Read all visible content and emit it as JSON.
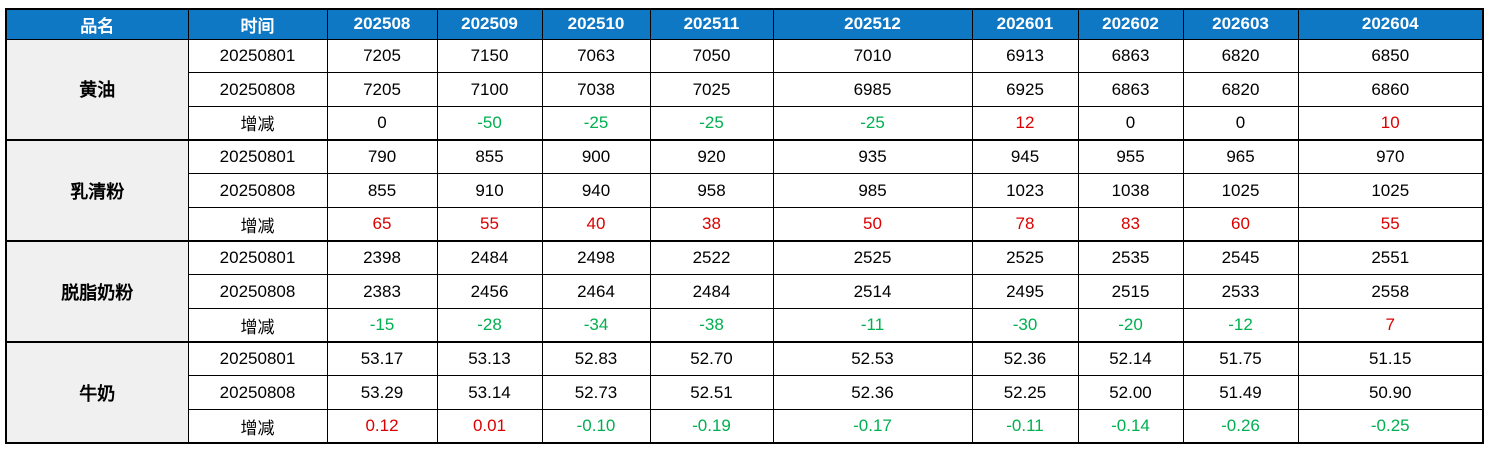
{
  "colors": {
    "header_bg": "#0F78C5",
    "header_text": "#FFFFFF",
    "increase_text": "#DC0000",
    "decrease_text": "#00B050",
    "neutral_text": "#000000",
    "product_column_bg": "#F0F0F0",
    "border": "#000000"
  },
  "chart_data": {
    "type": "table",
    "product_header": "品名",
    "time_header": "时间",
    "month_columns": [
      "202508",
      "202509",
      "202510",
      "202511",
      "202512",
      "202601",
      "202602",
      "202603",
      "202604"
    ],
    "row_labels": [
      "20250801",
      "20250808",
      "增减"
    ],
    "products": [
      {
        "name": "黄油",
        "rows": [
          {
            "label": "20250801",
            "change_row": false,
            "values": [
              "7205",
              "7150",
              "7063",
              "7050",
              "7010",
              "6913",
              "6863",
              "6820",
              "6850"
            ]
          },
          {
            "label": "20250808",
            "change_row": false,
            "values": [
              "7205",
              "7100",
              "7038",
              "7025",
              "6985",
              "6925",
              "6863",
              "6820",
              "6860"
            ]
          },
          {
            "label": "增减",
            "change_row": true,
            "values": [
              "0",
              "-50",
              "-25",
              "-25",
              "-25",
              "12",
              "0",
              "0",
              "10"
            ]
          }
        ]
      },
      {
        "name": "乳清粉",
        "rows": [
          {
            "label": "20250801",
            "change_row": false,
            "values": [
              "790",
              "855",
              "900",
              "920",
              "935",
              "945",
              "955",
              "965",
              "970"
            ]
          },
          {
            "label": "20250808",
            "change_row": false,
            "values": [
              "855",
              "910",
              "940",
              "958",
              "985",
              "1023",
              "1038",
              "1025",
              "1025"
            ]
          },
          {
            "label": "增减",
            "change_row": true,
            "values": [
              "65",
              "55",
              "40",
              "38",
              "50",
              "78",
              "83",
              "60",
              "55"
            ]
          }
        ]
      },
      {
        "name": "脱脂奶粉",
        "rows": [
          {
            "label": "20250801",
            "change_row": false,
            "values": [
              "2398",
              "2484",
              "2498",
              "2522",
              "2525",
              "2525",
              "2535",
              "2545",
              "2551"
            ]
          },
          {
            "label": "20250808",
            "change_row": false,
            "values": [
              "2383",
              "2456",
              "2464",
              "2484",
              "2514",
              "2495",
              "2515",
              "2533",
              "2558"
            ]
          },
          {
            "label": "增减",
            "change_row": true,
            "values": [
              "-15",
              "-28",
              "-34",
              "-38",
              "-11",
              "-30",
              "-20",
              "-12",
              "7"
            ]
          }
        ]
      },
      {
        "name": "牛奶",
        "rows": [
          {
            "label": "20250801",
            "change_row": false,
            "values": [
              "53.17",
              "53.13",
              "52.83",
              "52.70",
              "52.53",
              "52.36",
              "52.14",
              "51.75",
              "51.15"
            ]
          },
          {
            "label": "20250808",
            "change_row": false,
            "values": [
              "53.29",
              "53.14",
              "52.73",
              "52.51",
              "52.36",
              "52.25",
              "52.00",
              "51.49",
              "50.90"
            ]
          },
          {
            "label": "增减",
            "change_row": true,
            "values": [
              "0.12",
              "0.01",
              "-0.10",
              "-0.19",
              "-0.17",
              "-0.11",
              "-0.14",
              "-0.26",
              "-0.25"
            ]
          }
        ]
      }
    ]
  }
}
